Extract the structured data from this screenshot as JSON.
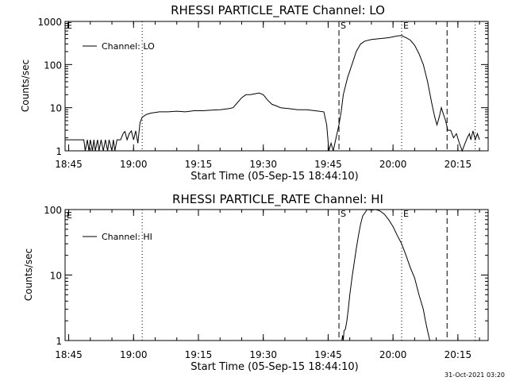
{
  "timestamp": "31-Oct-2021 03:20",
  "colors": {
    "background": "#ffffff",
    "foreground": "#000000"
  },
  "chart_data": [
    {
      "type": "line",
      "title": "RHESSI PARTICLE_RATE Channel: LO",
      "xlabel": "Start Time (05-Sep-15 18:44:10)",
      "ylabel": "Counts/sec",
      "y_scale": "log",
      "ylim": [
        1,
        1000
      ],
      "xlim": [
        "18:44:10",
        "20:22:00"
      ],
      "x_ticks": [
        "18:45",
        "19:00",
        "19:15",
        "19:30",
        "19:45",
        "20:00",
        "20:15"
      ],
      "y_ticks": [
        "1",
        "10",
        "100",
        "1000"
      ],
      "legend": {
        "position": "top-left",
        "entries": [
          "Channel: LO"
        ]
      },
      "markers": [
        {
          "time": "19:02:00",
          "style": "dotted",
          "label": ""
        },
        {
          "time": "19:47:30",
          "style": "dashed",
          "label": "S"
        },
        {
          "time": "20:02:00",
          "style": "dotted",
          "label": "E"
        },
        {
          "time": "20:12:30",
          "style": "dashed",
          "label": ""
        },
        {
          "time": "20:19:00",
          "style": "dotted",
          "label": ""
        }
      ],
      "edge_label": "E",
      "series": [
        {
          "name": "Channel: LO",
          "x": [
            "18:44:10",
            "18:48:30",
            "18:48:50",
            "18:49:20",
            "18:49:40",
            "18:50:00",
            "18:50:30",
            "18:50:50",
            "18:51:10",
            "18:51:40",
            "18:52:00",
            "18:52:30",
            "18:53:00",
            "18:53:30",
            "18:54:00",
            "18:54:20",
            "18:55:00",
            "18:55:20",
            "18:55:40",
            "18:56:10",
            "18:57:00",
            "18:57:40",
            "18:58:00",
            "18:58:30",
            "18:59:00",
            "18:59:30",
            "19:00:00",
            "19:00:30",
            "19:01:00",
            "19:01:30",
            "19:02:00",
            "19:02:30",
            "19:03:00",
            "19:04:00",
            "19:06:00",
            "19:08:00",
            "19:10:00",
            "19:12:00",
            "19:14:00",
            "19:16:00",
            "19:18:00",
            "19:20:00",
            "19:22:00",
            "19:23:00",
            "19:24:00",
            "19:25:00",
            "19:26:00",
            "19:27:00",
            "19:28:00",
            "19:29:00",
            "19:30:00",
            "19:31:00",
            "19:32:00",
            "19:33:00",
            "19:34:00",
            "19:36:00",
            "19:38:00",
            "19:40:00",
            "19:42:00",
            "19:44:00",
            "19:44:40",
            "19:45:10",
            "19:45:40",
            "19:46:10",
            "19:46:50",
            "19:47:30",
            "19:48:00",
            "19:48:30",
            "19:49:30",
            "19:50:30",
            "19:51:30",
            "19:52:30",
            "19:53:30",
            "19:55:00",
            "19:57:00",
            "19:59:00",
            "20:01:00",
            "20:02:00",
            "20:03:00",
            "20:04:00",
            "20:05:00",
            "20:06:00",
            "20:07:00",
            "20:08:00",
            "20:09:00",
            "20:09:40",
            "20:10:10",
            "20:10:40",
            "20:11:10",
            "20:11:40",
            "20:12:10",
            "20:12:40",
            "20:13:20",
            "20:14:00",
            "20:14:40",
            "20:15:20",
            "20:16:00",
            "20:16:40",
            "20:17:10",
            "20:17:40",
            "20:18:00",
            "20:18:30",
            "20:19:00",
            "20:19:30",
            "20:20:00"
          ],
          "values": [
            1.8,
            1.8,
            1,
            1.8,
            1,
            1.8,
            1,
            1.8,
            1,
            1.8,
            1,
            1.8,
            1,
            1.8,
            1,
            1.8,
            1,
            1.8,
            1,
            1.8,
            1.8,
            2.6,
            2.8,
            1.8,
            2.5,
            2.9,
            1.8,
            2.9,
            1.5,
            4.5,
            6,
            6.5,
            7,
            7.5,
            8,
            8,
            8.3,
            8,
            8.5,
            8.5,
            8.8,
            9,
            9.5,
            10,
            13,
            17,
            20,
            20,
            21,
            22,
            20,
            15,
            12,
            11,
            10,
            9.5,
            9,
            9,
            8.5,
            8,
            4,
            1,
            1.5,
            1,
            2,
            4,
            8,
            20,
            50,
            100,
            200,
            300,
            350,
            380,
            400,
            420,
            460,
            470,
            420,
            370,
            280,
            180,
            100,
            40,
            12,
            6,
            4,
            6,
            10,
            7,
            5,
            3,
            3,
            2,
            2.5,
            1.5,
            1,
            1.5,
            2,
            2.5,
            1.8,
            2.9,
            1.8,
            2.5,
            1.8
          ]
        }
      ]
    },
    {
      "type": "line",
      "title": "RHESSI PARTICLE_RATE Channel: HI",
      "xlabel": "Start Time (05-Sep-15 18:44:10)",
      "ylabel": "Counts/sec",
      "y_scale": "log",
      "ylim": [
        1,
        100
      ],
      "xlim": [
        "18:44:10",
        "20:22:00"
      ],
      "x_ticks": [
        "18:45",
        "19:00",
        "19:15",
        "19:30",
        "19:45",
        "20:00",
        "20:15"
      ],
      "y_ticks": [
        "1",
        "10",
        "100"
      ],
      "legend": {
        "position": "top-left",
        "entries": [
          "Channel: HI"
        ]
      },
      "markers": [
        {
          "time": "19:02:00",
          "style": "dotted",
          "label": ""
        },
        {
          "time": "19:47:30",
          "style": "dashed",
          "label": "S"
        },
        {
          "time": "20:02:00",
          "style": "dotted",
          "label": "E"
        },
        {
          "time": "20:12:30",
          "style": "dashed",
          "label": ""
        },
        {
          "time": "20:19:00",
          "style": "dotted",
          "label": ""
        }
      ],
      "edge_label": "E",
      "series": [
        {
          "name": "Channel: HI",
          "x": [
            "19:48:10",
            "19:48:20",
            "19:48:30",
            "19:48:40",
            "19:49:00",
            "19:49:20",
            "19:49:40",
            "19:50:00",
            "19:50:30",
            "19:51:00",
            "19:51:30",
            "19:52:00",
            "19:52:30",
            "19:53:00",
            "19:54:00",
            "19:55:00",
            "19:56:00",
            "19:57:00",
            "19:58:00",
            "19:59:00",
            "20:00:00",
            "20:01:00",
            "20:02:00",
            "20:03:00",
            "20:04:00",
            "20:05:00",
            "20:06:00",
            "20:07:00",
            "20:07:30",
            "20:08:00",
            "20:08:30"
          ],
          "values": [
            1,
            1.2,
            1,
            1.4,
            1.5,
            2,
            3,
            5,
            9,
            15,
            25,
            40,
            60,
            80,
            100,
            98,
            100,
            95,
            85,
            70,
            55,
            40,
            30,
            20,
            13,
            9,
            5,
            3,
            2,
            1.4,
            1
          ]
        }
      ]
    }
  ]
}
